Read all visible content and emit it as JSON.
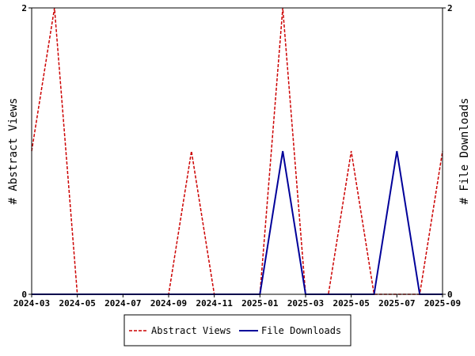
{
  "chart_data": {
    "type": "line",
    "x": [
      "2024-03",
      "2024-04",
      "2024-05",
      "2024-06",
      "2024-07",
      "2024-08",
      "2024-09",
      "2024-10",
      "2024-11",
      "2024-12",
      "2025-01",
      "2025-02",
      "2025-03",
      "2025-04",
      "2025-05",
      "2025-06",
      "2025-07",
      "2025-08",
      "2025-09"
    ],
    "x_ticks": [
      "2024-03",
      "2024-05",
      "2024-07",
      "2024-09",
      "2024-11",
      "2025-01",
      "2025-03",
      "2025-05",
      "2025-07",
      "2025-09"
    ],
    "series": [
      {
        "name": "Abstract Views",
        "axis": "left",
        "color": "#cc0000",
        "style": "dashed",
        "values": [
          1,
          2,
          0,
          0,
          0,
          0,
          0,
          1,
          0,
          0,
          0,
          2,
          0,
          0,
          1,
          0,
          0,
          0,
          1
        ]
      },
      {
        "name": "File Downloads",
        "axis": "right",
        "color": "#000099",
        "style": "solid",
        "values": [
          0,
          0,
          0,
          0,
          0,
          0,
          0,
          0,
          0,
          0,
          0,
          1,
          0,
          0,
          0,
          0,
          1,
          0,
          0
        ]
      }
    ],
    "ylabel_left": "# Abstract Views",
    "ylabel_right": "# File Downloads",
    "ylim_left": [
      0,
      2
    ],
    "ylim_right": [
      0,
      2
    ],
    "y_ticks_left": [
      "0",
      "2"
    ],
    "y_ticks_right": [
      "0",
      "2"
    ],
    "grid": false,
    "legend": "bottom"
  }
}
